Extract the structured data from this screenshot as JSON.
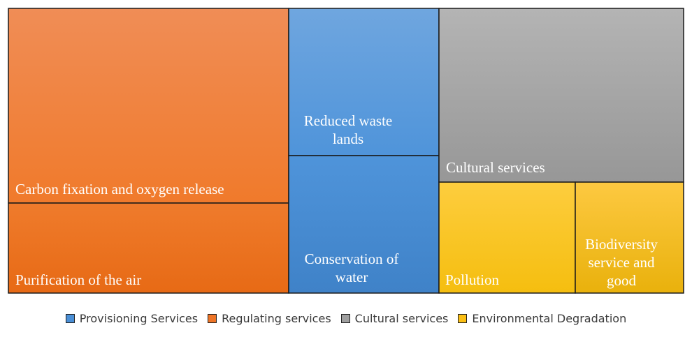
{
  "chart_data": {
    "type": "treemap",
    "colors": {
      "Provisioning Services": "#4a8fd6",
      "Regulating services": "#ee7426",
      "Cultural services": "#9f9f9f",
      "Environmental Degradation": "#fbbf14"
    },
    "legend": {
      "placement": "bottom",
      "entries": [
        "Provisioning Services",
        "Regulating services",
        "Cultural services",
        "Environmental Degradation"
      ]
    },
    "tiles": [
      {
        "label_lines": [
          "Carbon fixation and oxygen release"
        ],
        "group": "Regulating services"
      },
      {
        "label_lines": [
          "Purification of the air"
        ],
        "group": "Regulating services"
      },
      {
        "label_lines": [
          "Reduced waste",
          "lands"
        ],
        "group": "Provisioning Services"
      },
      {
        "label_lines": [
          "Conservation of",
          "water"
        ],
        "group": "Provisioning Services"
      },
      {
        "label_lines": [
          "Cultural services"
        ],
        "group": "Cultural services"
      },
      {
        "label_lines": [
          "Pollution"
        ],
        "group": "Environmental Degradation"
      },
      {
        "label_lines": [
          "Biodiversity",
          "service and",
          "good"
        ],
        "group": "Environmental Degradation"
      }
    ]
  }
}
